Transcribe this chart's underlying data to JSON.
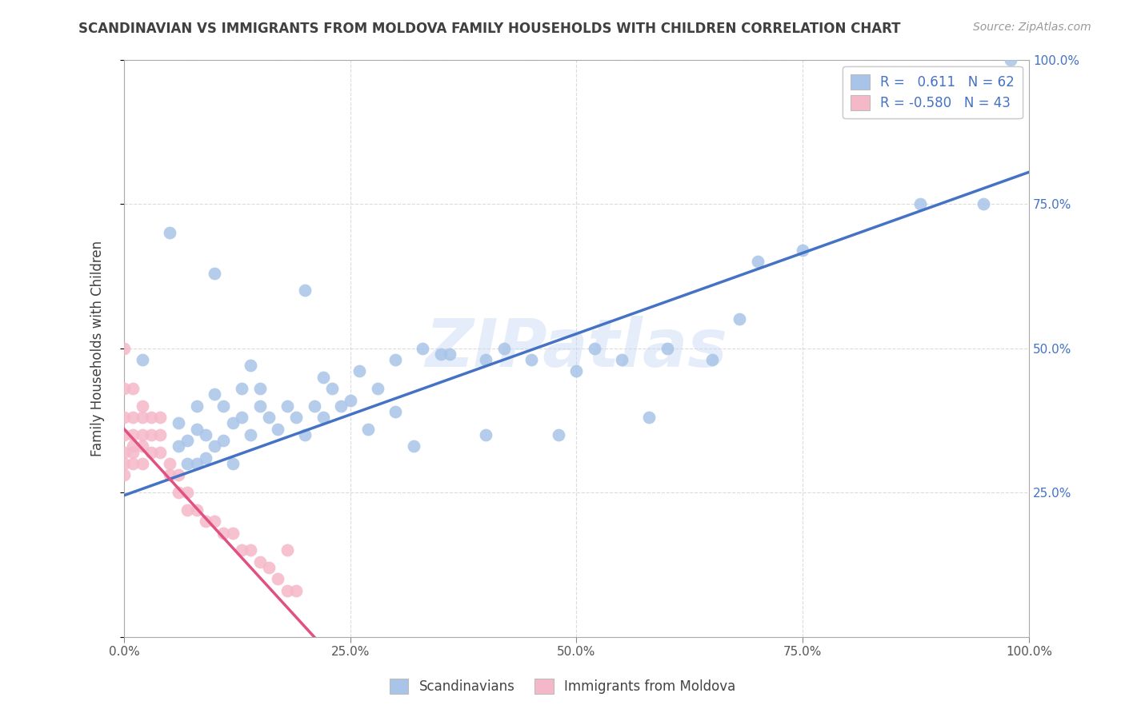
{
  "title": "SCANDINAVIAN VS IMMIGRANTS FROM MOLDOVA FAMILY HOUSEHOLDS WITH CHILDREN CORRELATION CHART",
  "source": "Source: ZipAtlas.com",
  "ylabel": "Family Households with Children",
  "watermark": "ZIPatlas",
  "legend_label1": "Scandinavians",
  "legend_label2": "Immigrants from Moldova",
  "r1": 0.611,
  "n1": 62,
  "r2": -0.58,
  "n2": 43,
  "color_blue": "#a8c4e8",
  "color_pink": "#f5b8c8",
  "color_blue_line": "#4472c4",
  "color_pink_line": "#e05080",
  "color_title": "#404040",
  "background": "#ffffff",
  "grid_color": "#cccccc",
  "xlim": [
    0.0,
    1.0
  ],
  "ylim": [
    0.0,
    1.0
  ],
  "xticks": [
    0.0,
    0.25,
    0.5,
    0.75,
    1.0
  ],
  "yticks": [
    0.0,
    0.25,
    0.5,
    0.75,
    1.0
  ],
  "xtick_labels": [
    "0.0%",
    "25.0%",
    "50.0%",
    "75.0%",
    "100.0%"
  ],
  "ytick_labels_right": [
    "",
    "25.0%",
    "50.0%",
    "75.0%",
    "100.0%"
  ],
  "blue_scatter_x": [
    0.02,
    0.05,
    0.06,
    0.06,
    0.07,
    0.07,
    0.08,
    0.08,
    0.08,
    0.09,
    0.09,
    0.1,
    0.1,
    0.11,
    0.11,
    0.12,
    0.12,
    0.13,
    0.13,
    0.14,
    0.14,
    0.15,
    0.15,
    0.16,
    0.17,
    0.18,
    0.19,
    0.2,
    0.21,
    0.22,
    0.22,
    0.23,
    0.24,
    0.25,
    0.26,
    0.27,
    0.28,
    0.3,
    0.32,
    0.33,
    0.35,
    0.36,
    0.4,
    0.42,
    0.45,
    0.48,
    0.5,
    0.52,
    0.55,
    0.58,
    0.6,
    0.65,
    0.68,
    0.7,
    0.75,
    0.88,
    0.95,
    0.98,
    0.1,
    0.2,
    0.3,
    0.4
  ],
  "blue_scatter_y": [
    0.48,
    0.7,
    0.33,
    0.37,
    0.3,
    0.34,
    0.3,
    0.36,
    0.4,
    0.31,
    0.35,
    0.33,
    0.42,
    0.34,
    0.4,
    0.3,
    0.37,
    0.38,
    0.43,
    0.35,
    0.47,
    0.4,
    0.43,
    0.38,
    0.36,
    0.4,
    0.38,
    0.35,
    0.4,
    0.45,
    0.38,
    0.43,
    0.4,
    0.41,
    0.46,
    0.36,
    0.43,
    0.48,
    0.33,
    0.5,
    0.49,
    0.49,
    0.48,
    0.5,
    0.48,
    0.35,
    0.46,
    0.5,
    0.48,
    0.38,
    0.5,
    0.48,
    0.55,
    0.65,
    0.67,
    0.75,
    0.75,
    1.0,
    0.63,
    0.6,
    0.39,
    0.35
  ],
  "pink_scatter_x": [
    0.0,
    0.0,
    0.0,
    0.0,
    0.0,
    0.0,
    0.0,
    0.01,
    0.01,
    0.01,
    0.01,
    0.01,
    0.01,
    0.02,
    0.02,
    0.02,
    0.02,
    0.02,
    0.03,
    0.03,
    0.03,
    0.04,
    0.04,
    0.04,
    0.05,
    0.05,
    0.06,
    0.06,
    0.07,
    0.07,
    0.08,
    0.09,
    0.1,
    0.11,
    0.12,
    0.13,
    0.14,
    0.15,
    0.16,
    0.17,
    0.18,
    0.18,
    0.19
  ],
  "pink_scatter_y": [
    0.5,
    0.43,
    0.38,
    0.35,
    0.32,
    0.3,
    0.28,
    0.43,
    0.38,
    0.35,
    0.33,
    0.32,
    0.3,
    0.4,
    0.38,
    0.35,
    0.33,
    0.3,
    0.38,
    0.35,
    0.32,
    0.38,
    0.35,
    0.32,
    0.3,
    0.28,
    0.28,
    0.25,
    0.25,
    0.22,
    0.22,
    0.2,
    0.2,
    0.18,
    0.18,
    0.15,
    0.15,
    0.13,
    0.12,
    0.1,
    0.08,
    0.15,
    0.08
  ],
  "blue_line_x": [
    0.0,
    1.0
  ],
  "blue_line_y": [
    0.245,
    0.805
  ],
  "pink_line_x": [
    0.0,
    0.21
  ],
  "pink_line_y": [
    0.36,
    0.0
  ]
}
